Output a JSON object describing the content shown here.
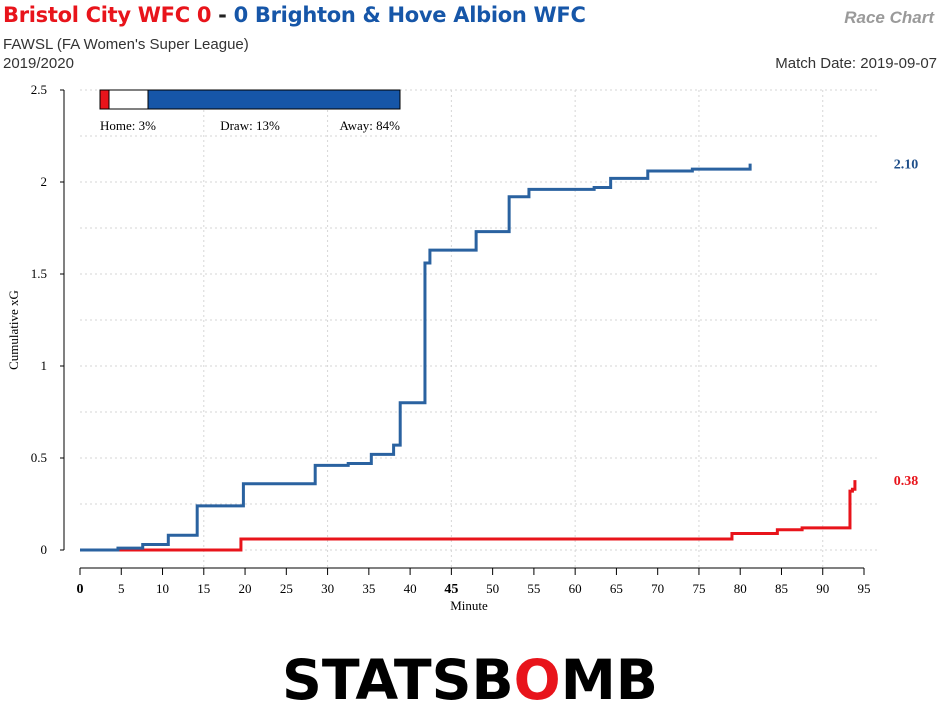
{
  "header": {
    "home_team": "Bristol City WFC",
    "home_score": "0",
    "separator": "-",
    "away_score": "0",
    "away_team": "Brighton & Hove Albion WFC",
    "chart_label": "Race Chart",
    "competition": "FAWSL (FA Women's Super League)",
    "season": "2019/2020",
    "match_date": "Match Date: 2019-09-07"
  },
  "probabilities": {
    "home": "Home: 3%",
    "draw": "Draw: 13%",
    "away": "Away: 84%",
    "home_value": 0.03,
    "draw_value": 0.13,
    "away_value": 0.84
  },
  "colors": {
    "home": "#e8141b",
    "away": "#2a62a0"
  },
  "logo": {
    "text": "STATSBOMB"
  },
  "chart_data": {
    "type": "line",
    "xlabel": "Minute",
    "ylabel": "Cumulative xG",
    "xlim": [
      0,
      95
    ],
    "ylim": [
      0,
      2.5
    ],
    "x_ticks": [
      0,
      5,
      10,
      15,
      20,
      25,
      30,
      35,
      40,
      45,
      50,
      55,
      60,
      65,
      70,
      75,
      80,
      85,
      90,
      95
    ],
    "y_ticks": [
      0,
      0.5,
      1,
      1.5,
      2,
      2.5
    ],
    "y_tick_labels": [
      "0",
      "0.5",
      "1",
      "1.5",
      "2",
      "2.5"
    ],
    "emphasized_tick": 45,
    "grid": "dotted",
    "series": [
      {
        "team": "home",
        "color": "#e8141b",
        "end_label": "0.38",
        "points": [
          [
            0,
            0
          ],
          [
            19.5,
            0.06
          ],
          [
            79,
            0.09
          ],
          [
            84.5,
            0.11
          ],
          [
            87.5,
            0.12
          ],
          [
            93.3,
            0.32
          ],
          [
            93.6,
            0.33
          ],
          [
            93.9,
            0.38
          ]
        ]
      },
      {
        "team": "away",
        "color": "#2a62a0",
        "end_label": "2.10",
        "points": [
          [
            0,
            0
          ],
          [
            4.6,
            0.01
          ],
          [
            7.6,
            0.03
          ],
          [
            10.7,
            0.08
          ],
          [
            14.2,
            0.24
          ],
          [
            19.8,
            0.36
          ],
          [
            28.5,
            0.46
          ],
          [
            32.5,
            0.47
          ],
          [
            35.3,
            0.52
          ],
          [
            38.0,
            0.57
          ],
          [
            38.8,
            0.8
          ],
          [
            41.8,
            1.56
          ],
          [
            42.4,
            1.63
          ],
          [
            48.0,
            1.73
          ],
          [
            52.0,
            1.92
          ],
          [
            54.4,
            1.96
          ],
          [
            62.3,
            1.97
          ],
          [
            64.3,
            2.02
          ],
          [
            68.8,
            2.06
          ],
          [
            74.2,
            2.07
          ],
          [
            81.2,
            2.1
          ]
        ]
      }
    ]
  }
}
